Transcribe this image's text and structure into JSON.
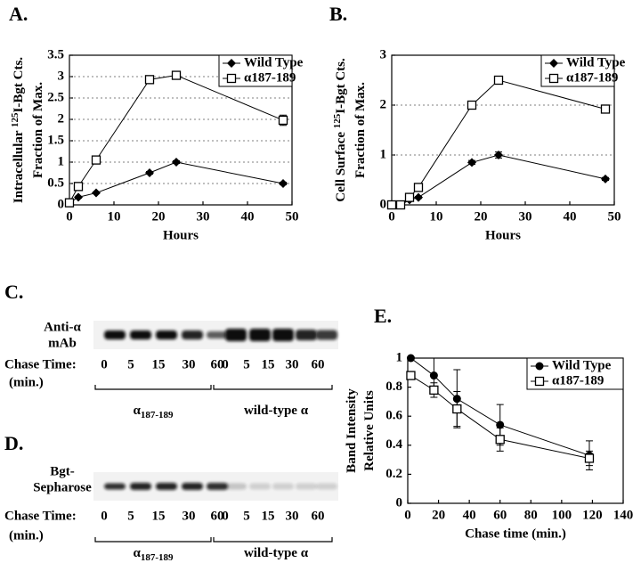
{
  "chart_data": [
    {
      "type": "line",
      "label": "A.",
      "ylabel": [
        [
          "Intracellular ",
          "125",
          "I-Bgt Cts."
        ],
        [
          "Fraction of Max."
        ]
      ],
      "xlabel": "Hours",
      "xlim": [
        0,
        50
      ],
      "xticks": [
        0,
        10,
        20,
        30,
        40,
        50
      ],
      "ylim": [
        0,
        3.5
      ],
      "yticks": [
        0,
        0.5,
        1,
        1.5,
        2,
        2.5,
        3,
        3.5
      ],
      "grid": true,
      "legend": "upper right",
      "series": [
        {
          "name": "Wild Type",
          "color": "#000000",
          "marker": "diamond",
          "x": [
            0,
            2,
            6,
            18,
            24,
            48
          ],
          "values": [
            0.05,
            0.18,
            0.28,
            0.75,
            1.0,
            0.5
          ],
          "errors": [
            0.02,
            0.02,
            0.02,
            0.03,
            0.03,
            0.03
          ]
        },
        {
          "name": "α187-189",
          "color": "#000000",
          "marker": "square-open",
          "x": [
            0,
            2,
            6,
            18,
            24,
            48
          ],
          "values": [
            0.05,
            0.43,
            1.05,
            2.93,
            3.03,
            1.98
          ],
          "errors": [
            0.03,
            0.05,
            0.05,
            0.06,
            0.05,
            0.12
          ]
        }
      ]
    },
    {
      "type": "line",
      "label": "B.",
      "ylabel": [
        [
          "Cell Surface ",
          "125",
          "I-Bgt Cts."
        ],
        [
          "Fraction of Max."
        ]
      ],
      "xlabel": "Hours",
      "xlim": [
        0,
        50
      ],
      "xticks": [
        0,
        10,
        20,
        30,
        40,
        50
      ],
      "ylim": [
        0,
        3
      ],
      "yticks": [
        0,
        1,
        2,
        3
      ],
      "grid": true,
      "legend": "upper right",
      "series": [
        {
          "name": "Wild Type",
          "color": "#000000",
          "marker": "diamond",
          "x": [
            0,
            2,
            4,
            6,
            18,
            24,
            48
          ],
          "values": [
            0,
            0,
            0.1,
            0.15,
            0.85,
            1.0,
            0.52
          ],
          "errors": [
            0.02,
            0.02,
            0.02,
            0.02,
            0.04,
            0.06,
            0.03
          ]
        },
        {
          "name": "α187-189",
          "color": "#000000",
          "marker": "square-open",
          "x": [
            0,
            2,
            4,
            6,
            18,
            24,
            48
          ],
          "values": [
            0,
            0,
            0.15,
            0.35,
            2.0,
            2.5,
            1.92
          ],
          "errors": [
            0.02,
            0.02,
            0.03,
            0.04,
            0.08,
            0.07,
            0.06
          ]
        }
      ]
    },
    {
      "type": "line",
      "label": "E.",
      "ylabel": [
        [
          "Band Intensity"
        ],
        [
          "Relative Units"
        ]
      ],
      "xlabel": "Chase time (min.)",
      "xlim": [
        0,
        140
      ],
      "xticks": [
        0,
        20,
        40,
        60,
        80,
        100,
        120,
        140
      ],
      "ylim": [
        0,
        1
      ],
      "yticks": [
        0,
        0.2,
        0.4,
        0.6,
        0.8,
        1
      ],
      "grid": false,
      "legend": "upper right",
      "series": [
        {
          "name": "Wild Type",
          "color": "#000000",
          "marker": "circle",
          "x": [
            2,
            17,
            32,
            60,
            118
          ],
          "values": [
            1.0,
            0.88,
            0.72,
            0.54,
            0.33
          ],
          "errors": [
            0.0,
            0.12,
            0.2,
            0.14,
            0.1
          ]
        },
        {
          "name": "α187-189",
          "color": "#000000",
          "marker": "square-open",
          "x": [
            2,
            17,
            32,
            60,
            118
          ],
          "values": [
            0.88,
            0.78,
            0.65,
            0.44,
            0.31
          ],
          "errors": [
            0.02,
            0.05,
            0.12,
            0.08,
            0.05
          ]
        }
      ]
    }
  ],
  "gels": [
    {
      "label": "C.",
      "probe": [
        "Anti-α",
        "mAb"
      ],
      "chase": [
        "Chase Time:",
        "(min.)"
      ],
      "lanes": [
        "0",
        "5",
        "15",
        "30",
        "60",
        "0",
        "5",
        "15",
        "30",
        "60"
      ],
      "groups": [
        [
          "α",
          "187-189"
        ],
        [
          "wild-type α"
        ]
      ]
    },
    {
      "label": "D.",
      "probe": [
        "Bgt-",
        "Sepharose"
      ],
      "chase": [
        "Chase Time:",
        "(min.)"
      ],
      "lanes": [
        "0",
        "5",
        "15",
        "30",
        "60",
        "0",
        "5",
        "15",
        "30",
        "60"
      ],
      "groups": [
        [
          "α",
          "187-189"
        ],
        [
          "wild-type α"
        ]
      ]
    }
  ]
}
